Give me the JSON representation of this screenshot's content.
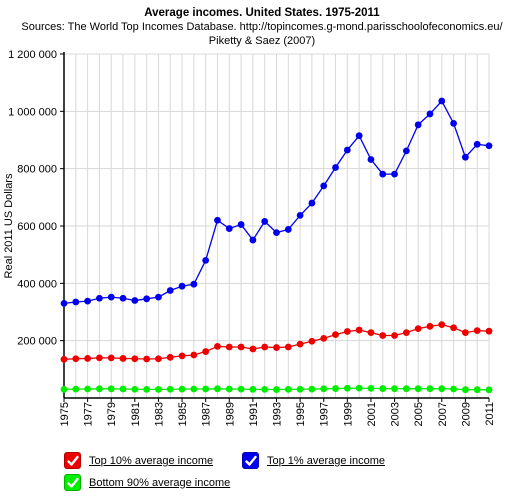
{
  "chart_data": {
    "type": "line",
    "title": "Average incomes. United States. 1975-2011",
    "subtitle_lines": [
      "Sources: The World Top Incomes Database. http://topincomes.g-mond.parisschoolofeconomics.eu/",
      "Piketty & Saez (2007)"
    ],
    "ylabel": "Real 2011 US Dollars",
    "xlabel": "",
    "ylim": [
      0,
      1200000
    ],
    "yticks": [
      200000,
      400000,
      600000,
      800000,
      1000000,
      1200000
    ],
    "ytick_labels": [
      "200 000",
      "400 000",
      "600 000",
      "800 000",
      "1 000 000",
      "1 200 000"
    ],
    "xlim": [
      1975,
      2011
    ],
    "xtick_labels": [
      "1975",
      "1977",
      "1979",
      "1981",
      "1983",
      "1985",
      "1987",
      "1989",
      "1991",
      "1993",
      "1995",
      "1997",
      "1999",
      "2001",
      "2003",
      "2005",
      "2007",
      "2009",
      "2011"
    ],
    "grid": true,
    "legend_position": "bottom",
    "x": [
      1975,
      1976,
      1977,
      1978,
      1979,
      1980,
      1981,
      1982,
      1983,
      1984,
      1985,
      1986,
      1987,
      1988,
      1989,
      1990,
      1991,
      1992,
      1993,
      1994,
      1995,
      1996,
      1997,
      1998,
      1999,
      2000,
      2001,
      2002,
      2003,
      2004,
      2005,
      2006,
      2007,
      2008,
      2009,
      2010,
      2011
    ],
    "series": [
      {
        "name": "Top 1% average income",
        "color": "#0000ee",
        "values": [
          330000,
          335000,
          338000,
          348000,
          352000,
          348000,
          340000,
          346000,
          352000,
          375000,
          390000,
          397000,
          480000,
          620000,
          591000,
          605000,
          551000,
          616000,
          577000,
          588000,
          637000,
          680000,
          740000,
          804000,
          865000,
          915000,
          832000,
          781000,
          781000,
          862000,
          953000,
          991000,
          1036000,
          958000,
          840000,
          885000,
          880000
        ]
      },
      {
        "name": "Top 10% average income",
        "color": "#ee0000",
        "values": [
          135000,
          137000,
          138000,
          140000,
          140000,
          138000,
          137000,
          136000,
          137000,
          142000,
          147000,
          150000,
          162000,
          180000,
          178000,
          178000,
          171000,
          178000,
          176000,
          178000,
          188000,
          198000,
          208000,
          221000,
          232000,
          237000,
          228000,
          218000,
          218000,
          228000,
          242000,
          250000,
          256000,
          245000,
          228000,
          235000,
          233000
        ]
      },
      {
        "name": "Bottom 90% average income",
        "color": "#00ee00",
        "values": [
          30000,
          31000,
          31500,
          32000,
          32000,
          31500,
          30500,
          30000,
          30000,
          30500,
          31000,
          31500,
          31500,
          32000,
          31500,
          31000,
          30000,
          30000,
          29500,
          30000,
          30500,
          31000,
          32000,
          33000,
          34000,
          34500,
          33500,
          33000,
          32500,
          32500,
          32500,
          32500,
          32500,
          31500,
          29000,
          29000,
          28500
        ]
      }
    ]
  },
  "legend": {
    "items": [
      {
        "label": "Top 10% average income",
        "color": "#ee0000"
      },
      {
        "label": "Top 1% average income",
        "color": "#0000ee"
      },
      {
        "label": "Bottom 90% average income",
        "color": "#00ee00"
      }
    ]
  }
}
